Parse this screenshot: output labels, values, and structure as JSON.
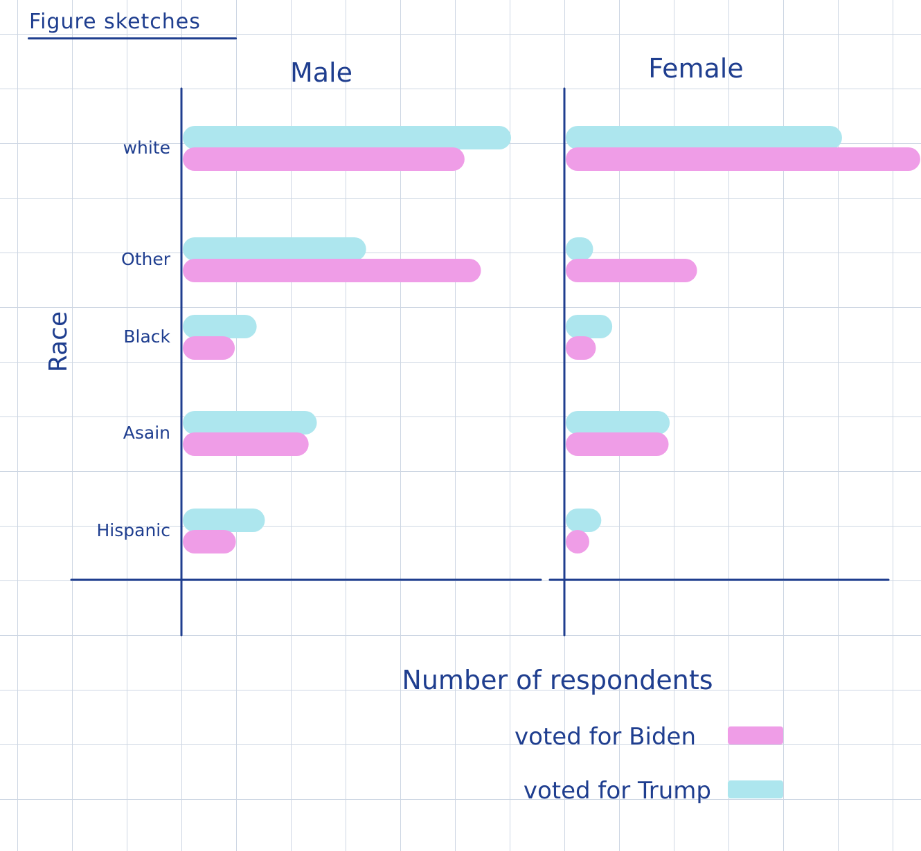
{
  "page_title": "Figure sketches",
  "chart_data": {
    "type": "bar",
    "orientation": "horizontal",
    "grouped": true,
    "facets": [
      "Male",
      "Female"
    ],
    "categories": [
      "white",
      "Other",
      "Black",
      "Asain",
      "Hispanic"
    ],
    "ylabel": "Race",
    "xlabel": "Number of respondents",
    "series": [
      {
        "name": "voted for Trump",
        "color": "#ade6ee",
        "values": {
          "Male": [
            6.0,
            3.35,
            1.35,
            2.45,
            1.5
          ],
          "Female": [
            5.05,
            0.5,
            0.85,
            1.9,
            0.65
          ]
        }
      },
      {
        "name": "voted for Biden",
        "color": "#ef9de7",
        "values": {
          "Male": [
            5.15,
            5.45,
            0.95,
            2.3,
            0.97
          ],
          "Female": [
            6.48,
            2.4,
            0.55,
            1.88,
            0.42
          ]
        }
      }
    ],
    "xlim": [
      0,
      7
    ],
    "axis_tick_labels": false,
    "grid": true,
    "legend_position": "bottom-right"
  }
}
